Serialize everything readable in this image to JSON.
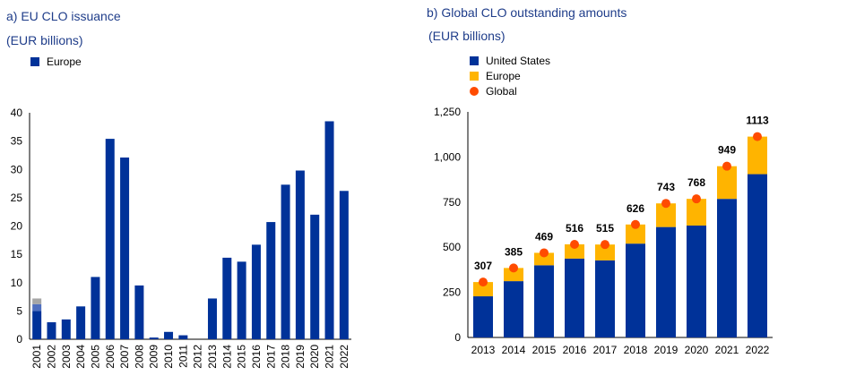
{
  "panels": {
    "a": {
      "title": "a) EU CLO issuance",
      "subtitle": "(EUR billions)"
    },
    "b": {
      "title": "b) Global CLO outstanding amounts",
      "subtitle": "(EUR billions)"
    }
  },
  "colors": {
    "us": "#003299",
    "europe": "#ffb400",
    "global": "#ff4b00",
    "eu_bar": "#003299",
    "grey": "#a6a6a6",
    "lightblue": "#4f6fbf"
  },
  "chart_data": [
    {
      "type": "bar",
      "title": "a) EU CLO issuance",
      "ylabel": "(EUR billions)",
      "ylim": [
        0,
        40
      ],
      "yticks": [
        "0",
        "5",
        "10",
        "15",
        "20",
        "25",
        "30",
        "35",
        "40"
      ],
      "legend": [
        "Europe"
      ],
      "categories": [
        "2001",
        "2002",
        "2003",
        "2004",
        "2005",
        "2006",
        "2007",
        "2008",
        "2009",
        "2010",
        "2011",
        "2012",
        "2013",
        "2014",
        "2015",
        "2016",
        "2017",
        "2018",
        "2019",
        "2020",
        "2021",
        "2022"
      ],
      "series": [
        {
          "name": "Europe",
          "values": [
            5.0,
            3.0,
            3.5,
            5.8,
            11.0,
            35.4,
            32.1,
            9.5,
            0.3,
            1.3,
            0.7,
            0.0,
            7.2,
            14.4,
            13.7,
            16.7,
            20.7,
            27.3,
            29.8,
            22.0,
            38.5,
            26.2
          ]
        }
      ],
      "extra_2001": [
        {
          "color": "lightblue",
          "value": 1.2
        },
        {
          "color": "grey",
          "value": 1.0
        }
      ]
    },
    {
      "type": "bar",
      "title": "b) Global CLO outstanding amounts",
      "ylabel": "(EUR billions)",
      "ylim": [
        0,
        1250
      ],
      "yticks": [
        "0",
        "250",
        "500",
        "750",
        "1,000",
        "1,250"
      ],
      "categories": [
        "2013",
        "2014",
        "2015",
        "2016",
        "2017",
        "2018",
        "2019",
        "2020",
        "2021",
        "2022"
      ],
      "series": [
        {
          "name": "United States",
          "values": [
            228,
            312,
            400,
            437,
            427,
            520,
            612,
            620,
            768,
            905
          ]
        },
        {
          "name": "Europe",
          "values": [
            79,
            73,
            69,
            79,
            88,
            106,
            131,
            148,
            181,
            208
          ]
        },
        {
          "name": "Global",
          "values": [
            307,
            385,
            469,
            516,
            515,
            626,
            743,
            768,
            949,
            1113
          ]
        }
      ],
      "labels": [
        "307",
        "385",
        "469",
        "516",
        "515",
        "626",
        "743",
        "768",
        "949",
        "1113"
      ]
    }
  ]
}
